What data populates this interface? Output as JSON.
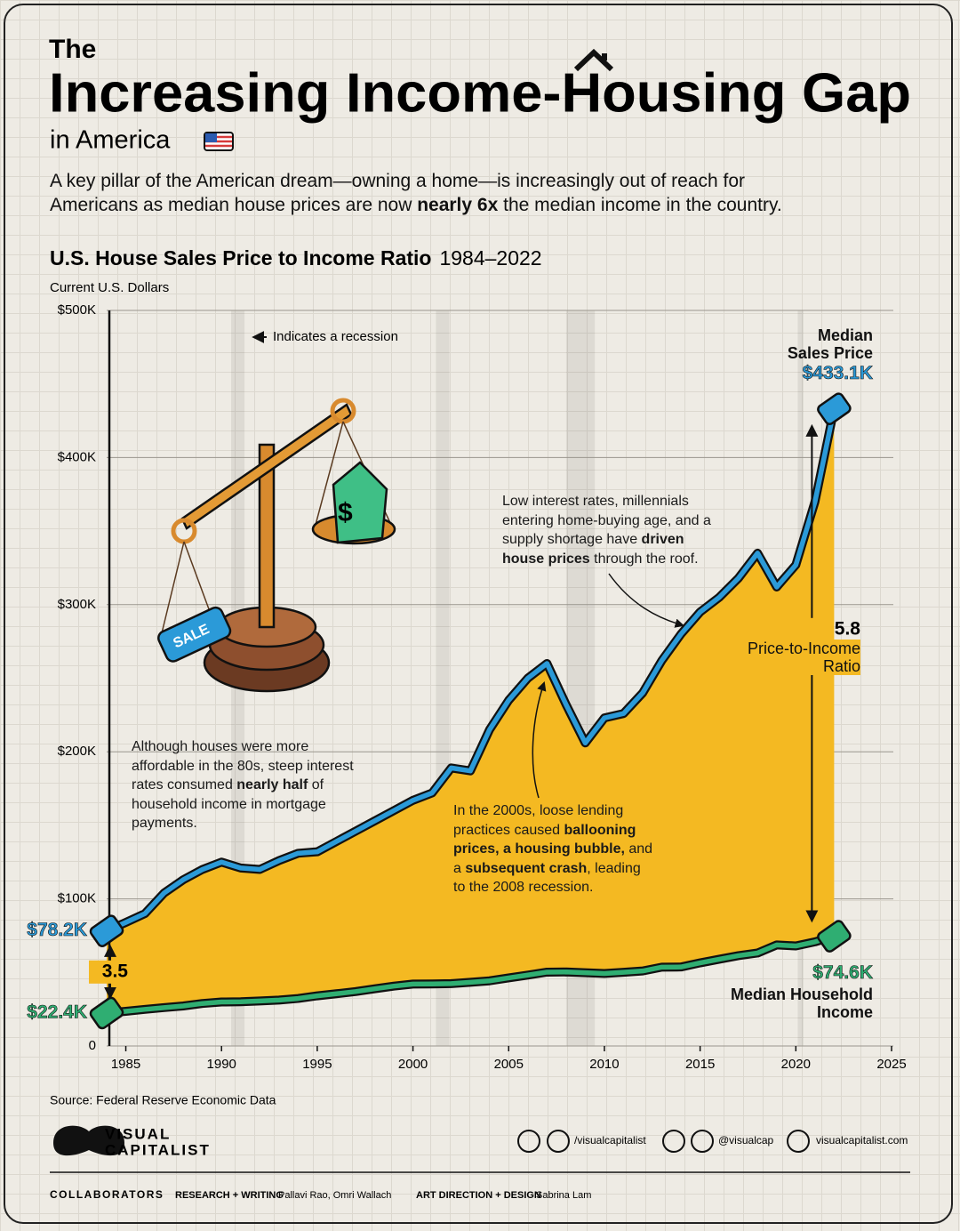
{
  "header": {
    "kicker": "The",
    "title": "Increasing Income-Housing Gap",
    "place": "in America",
    "intro": "A key pillar of the American dream—owning a home—is increasingly out of reach for Americans as median house prices are now nearly 6x the median income in the country.",
    "intro_emphasis": [
      "nearly 6x"
    ]
  },
  "chart_data": {
    "type": "area-between",
    "title": "U.S. House Sales Price to Income Ratio",
    "period": "1984–2022",
    "y_label": "Current U.S. Dollars",
    "grid": true,
    "xlim": [
      1984,
      2025
    ],
    "xticks": [
      1985,
      1990,
      1995,
      2000,
      2005,
      2010,
      2015,
      2020,
      2025
    ],
    "ylim": [
      0,
      500000
    ],
    "yticks": [
      0,
      {
        "value": 100000,
        "label": "$100K"
      },
      {
        "value": 200000,
        "label": "$200K"
      },
      {
        "value": 300000,
        "label": "$300K"
      },
      {
        "value": 400000,
        "label": "$400K"
      },
      {
        "value": 500000,
        "label": "$500K"
      }
    ],
    "x": [
      1984,
      1985,
      1986,
      1987,
      1988,
      1989,
      1990,
      1991,
      1992,
      1993,
      1994,
      1995,
      1996,
      1997,
      1998,
      1999,
      2000,
      2001,
      2002,
      2003,
      2004,
      2005,
      2006,
      2007,
      2008,
      2009,
      2010,
      2011,
      2012,
      2013,
      2014,
      2015,
      2016,
      2017,
      2018,
      2019,
      2020,
      2021,
      2022
    ],
    "fill_color": "#f4b922",
    "series": [
      {
        "name": "Median Sales Price",
        "color": "#2b9ad8",
        "values": [
          78200,
          84000,
          90000,
          104000,
          113000,
          120000,
          125000,
          121000,
          120000,
          126000,
          131000,
          132000,
          139000,
          146000,
          153000,
          160000,
          167000,
          172000,
          189000,
          187000,
          215000,
          235000,
          250000,
          260000,
          232000,
          206000,
          223000,
          226000,
          240000,
          262000,
          280000,
          295000,
          305000,
          318000,
          335000,
          312000,
          327000,
          370000,
          433100
        ],
        "value_labels": [
          "$78.2K",
          null,
          null,
          null,
          null,
          null,
          null,
          null,
          null,
          null,
          null,
          null,
          null,
          null,
          null,
          null,
          null,
          null,
          null,
          null,
          null,
          null,
          null,
          null,
          null,
          null,
          null,
          null,
          null,
          null,
          null,
          null,
          null,
          null,
          null,
          null,
          null,
          null,
          "$433.1K"
        ]
      },
      {
        "name": "Median Household Income",
        "color": "#2fae72",
        "values": [
          22400,
          23600,
          24900,
          26100,
          27200,
          28900,
          29900,
          30100,
          30600,
          31200,
          32300,
          34100,
          35500,
          37000,
          38900,
          40700,
          42100,
          42200,
          42400,
          43300,
          44300,
          46300,
          48200,
          50200,
          50300,
          49800,
          49300,
          50100,
          51000,
          53600,
          53700,
          56500,
          59000,
          61400,
          63200,
          68700,
          68000,
          70800,
          74600
        ],
        "value_labels": [
          "$22.4K",
          null,
          null,
          null,
          null,
          null,
          null,
          null,
          null,
          null,
          null,
          null,
          null,
          null,
          null,
          null,
          null,
          null,
          null,
          null,
          null,
          null,
          null,
          null,
          null,
          null,
          null,
          null,
          null,
          null,
          null,
          null,
          null,
          null,
          null,
          null,
          null,
          null,
          "$74.6K"
        ]
      }
    ],
    "ratios": [
      {
        "x": 1984,
        "value": 3.5
      },
      {
        "x": 2022,
        "value": 5.8
      }
    ],
    "ratio_label": "Price-to-Income Ratio",
    "recessions": [
      [
        1990.5,
        1991.2
      ],
      [
        2001.2,
        2001.9
      ],
      [
        2008.0,
        2009.5
      ],
      [
        2020.1,
        2020.4
      ]
    ],
    "recession_legend": "Indicates a recession",
    "annotations": [
      {
        "text": "Although houses were more affordable in the 80s, steep interest rates consumed nearly half of household income in mortgage payments.",
        "emphasis": [
          "nearly half"
        ]
      },
      {
        "text": "In the 2000s, loose lending practices caused ballooning prices, a housing bubble, and a subsequent crash, leading to the 2008 recession.",
        "emphasis": [
          "ballooning prices, a housing bubble,",
          "subsequent crash"
        ]
      },
      {
        "text": "Low interest rates, millennials entering home-buying age, and a supply shortage have driven house prices through the roof.",
        "emphasis": [
          "driven house prices"
        ]
      }
    ],
    "illustration": {
      "tag": "SALE",
      "house": "$"
    }
  },
  "footer": {
    "source": "Source: Federal Reserve Economic Data",
    "logo": [
      "VISUAL",
      "CAPITALIST"
    ],
    "social": [
      "/visualcapitalist",
      "@visualcap",
      "visualcapitalist.com"
    ],
    "collaborators": "COLLABORATORS",
    "credits": [
      [
        "RESEARCH + WRITING",
        "Pallavi Rao, Omri Wallach"
      ],
      [
        "ART DIRECTION + DESIGN",
        "Sabrina Lam"
      ]
    ]
  }
}
